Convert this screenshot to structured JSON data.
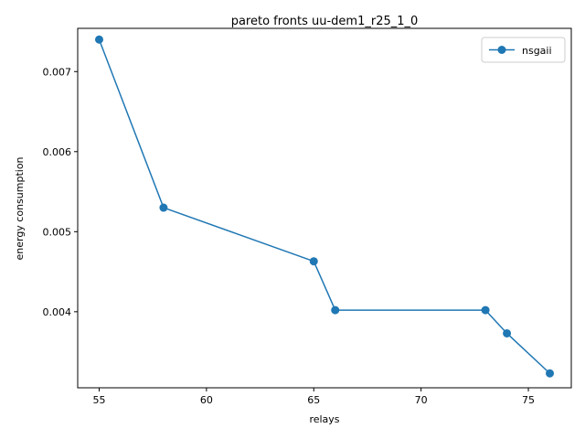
{
  "chart_data": {
    "type": "line",
    "title": "pareto fronts uu-dem1_r25_1_0",
    "xlabel": "relays",
    "ylabel": "energy consumption",
    "xlim": [
      54.0,
      77.0
    ],
    "ylim": [
      0.00305,
      0.00754
    ],
    "xticks": [
      55,
      60,
      65,
      70,
      75
    ],
    "xtick_labels": [
      "55",
      "60",
      "65",
      "70",
      "75"
    ],
    "yticks": [
      0.004,
      0.005,
      0.006,
      0.007
    ],
    "ytick_labels": [
      "0.004",
      "0.005",
      "0.006",
      "0.007"
    ],
    "grid": false,
    "legend_position": "upper right",
    "series": [
      {
        "name": "nsgaii",
        "color": "#1f77b4",
        "marker": "circle",
        "x": [
          55,
          58,
          65,
          66,
          73,
          74,
          76
        ],
        "y": [
          0.0074,
          0.0053,
          0.00463,
          0.00402,
          0.00402,
          0.00373,
          0.00323
        ]
      }
    ]
  }
}
